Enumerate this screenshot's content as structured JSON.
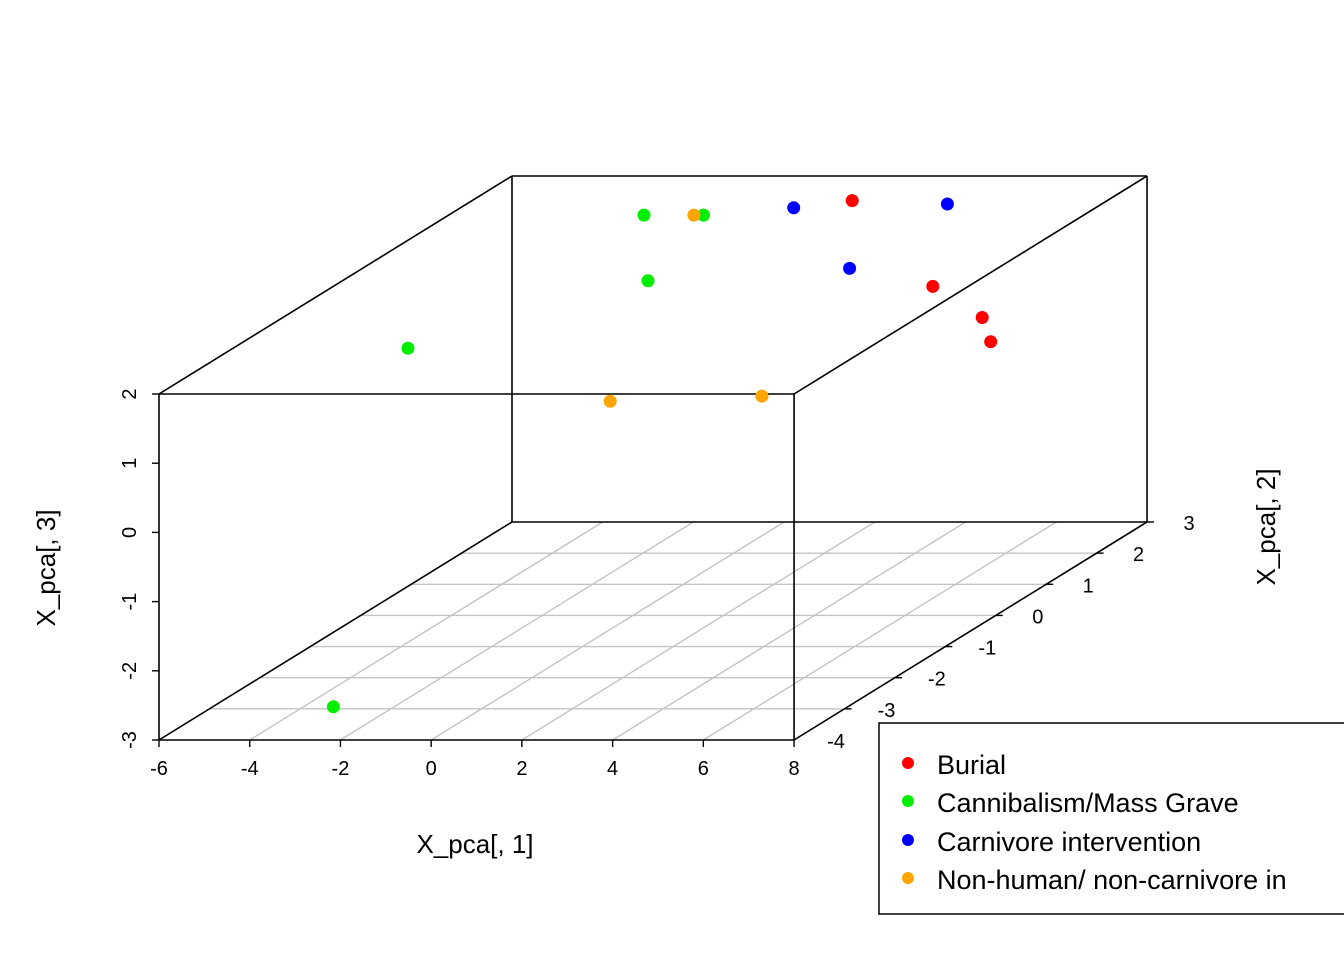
{
  "chart_data": {
    "type": "scatter",
    "projection": "3d",
    "xlabel": "X_pca[, 1]",
    "ylabel": "X_pca[, 2]",
    "zlabel": "X_pca[, 3]",
    "xlim": [
      -6,
      8
    ],
    "ylim": [
      -4,
      3
    ],
    "zlim": [
      -3,
      2
    ],
    "x_ticks": [
      "-6",
      "-4",
      "-2",
      "0",
      "2",
      "4",
      "6",
      "8"
    ],
    "y_ticks": [
      "-4",
      "-3",
      "-2",
      "-1",
      "0",
      "1",
      "2",
      "3"
    ],
    "z_ticks": [
      "-3",
      "-2",
      "-1",
      "0",
      "1",
      "2"
    ],
    "floor_grid": true,
    "legend": {
      "position": "bottom-right",
      "entries": [
        {
          "label": "Burial",
          "color": "#ff0000"
        },
        {
          "label": "Cannibalism/Mass Grave",
          "color": "#00ee00"
        },
        {
          "label": "Carnivore intervention",
          "color": "#0000ff"
        },
        {
          "label": "Non-human/ non-carnivore in",
          "color": "#ffa500"
        }
      ]
    },
    "series": [
      {
        "name": "Burial",
        "color": "#ff0000",
        "points": [
          {
            "x": 4.5,
            "y": 1.9,
            "z": 0.9
          },
          {
            "x": 6.7,
            "y": 0.9,
            "z": 0.9
          },
          {
            "x": 2.5,
            "y": 2.1,
            "z": 2.05
          },
          {
            "x": 8.0,
            "y": -0.1,
            "z": 1.0
          }
        ]
      },
      {
        "name": "Cannibalism/Mass Grave",
        "color": "#00ee00",
        "points": [
          {
            "x": -1.0,
            "y": 2.3,
            "z": 1.75
          },
          {
            "x": -1.2,
            "y": 1.3,
            "z": 2.2
          },
          {
            "x": 0.0,
            "y": 0.3,
            "z": 1.7
          },
          {
            "x": -1.4,
            "y": -3.2,
            "z": 2.3
          },
          {
            "x": -2.6,
            "y": -3.6,
            "z": -2.7
          }
        ]
      },
      {
        "name": "Carnivore intervention",
        "color": "#0000ff",
        "points": [
          {
            "x": 1.1,
            "y": 2.2,
            "z": 1.9
          },
          {
            "x": 4.0,
            "y": 0.7,
            "z": 1.7
          },
          {
            "x": 4.6,
            "y": 2.1,
            "z": 2.0
          }
        ]
      },
      {
        "name": "Non-human/ non-carnivore in",
        "color": "#ffa500",
        "points": [
          {
            "x": -0.1,
            "y": 1.3,
            "z": 2.2
          },
          {
            "x": 0.5,
            "y": -0.9,
            "z": 0.5
          },
          {
            "x": 4.4,
            "y": -1.4,
            "z": 0.8
          }
        ]
      }
    ]
  }
}
